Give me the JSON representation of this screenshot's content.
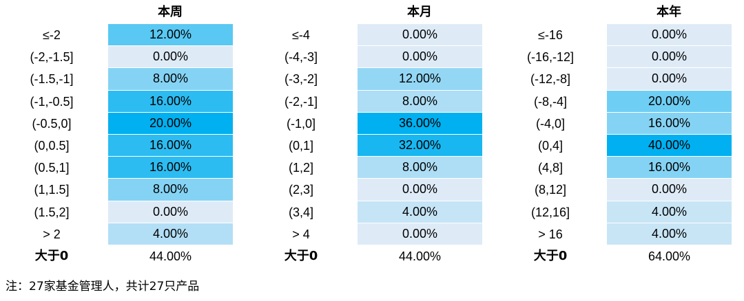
{
  "chart_data": [
    {
      "type": "heatmap",
      "title": "本周",
      "categories": [
        "≤-2",
        "(-2,-1.5]",
        "(-1.5,-1]",
        "(-1,-0.5]",
        "(-0.5,0]",
        "(0,0.5]",
        "(0.5,1]",
        "(1,1.5]",
        "(1.5,2]",
        "> 2"
      ],
      "values": [
        12,
        0,
        8,
        16,
        20,
        16,
        16,
        8,
        0,
        4
      ],
      "value_labels": [
        "12.00%",
        "0.00%",
        "8.00%",
        "16.00%",
        "20.00%",
        "16.00%",
        "16.00%",
        "8.00%",
        "0.00%",
        "4.00%"
      ],
      "summary_label": "大于0",
      "summary_value": "44.00%"
    },
    {
      "type": "heatmap",
      "title": "本月",
      "categories": [
        "≤-4",
        "(-4,-3]",
        "(-3,-2]",
        "(-2,-1]",
        "(-1,0]",
        "(0,1]",
        "(1,2]",
        "(2,3]",
        "(3,4]",
        "> 4"
      ],
      "values": [
        0,
        0,
        12,
        8,
        36,
        32,
        8,
        0,
        4,
        0
      ],
      "value_labels": [
        "0.00%",
        "0.00%",
        "12.00%",
        "8.00%",
        "36.00%",
        "32.00%",
        "8.00%",
        "0.00%",
        "4.00%",
        "0.00%"
      ],
      "summary_label": "大于0",
      "summary_value": "44.00%"
    },
    {
      "type": "heatmap",
      "title": "本年",
      "categories": [
        "≤-16",
        "(-16,-12]",
        "(-12,-8]",
        "(-8,-4]",
        "(-4,0]",
        "(0,4]",
        "(4,8]",
        "(8,12]",
        "(12,16]",
        "> 16"
      ],
      "values": [
        0,
        0,
        0,
        20,
        16,
        40,
        16,
        0,
        4,
        4
      ],
      "value_labels": [
        "0.00%",
        "0.00%",
        "0.00%",
        "20.00%",
        "16.00%",
        "40.00%",
        "16.00%",
        "0.00%",
        "4.00%",
        "4.00%"
      ],
      "summary_label": "大于0",
      "summary_value": "64.00%"
    }
  ],
  "colors": {
    "low": "#deebf7",
    "high": "#00b0f0"
  },
  "note": "注：27家基金管理人，共计27只产品"
}
